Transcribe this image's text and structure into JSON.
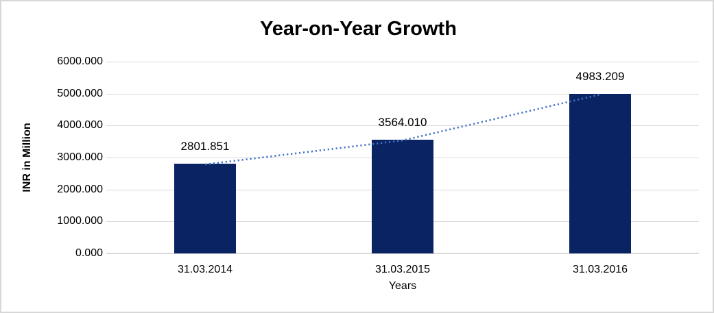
{
  "chart_data": {
    "type": "bar",
    "title": "Year-on-Year Growth",
    "categories": [
      "31.03.2014",
      "31.03.2015",
      "31.03.2016"
    ],
    "series": [
      {
        "name": "values-bars",
        "type": "bar",
        "values": [
          2801.851,
          3564.01,
          4983.209
        ]
      },
      {
        "name": "trend-line",
        "type": "dotted-line",
        "values": [
          2801.851,
          3564.01,
          4983.209
        ]
      }
    ],
    "value_labels": [
      "2801.851",
      "3564.010",
      "4983.209"
    ],
    "xlabel": "Years",
    "ylabel": "INR in Million",
    "ylim": [
      0,
      6000
    ],
    "ytick_step": 1000,
    "ytick_labels": [
      "0.000",
      "1000.000",
      "2000.000",
      "3000.000",
      "4000.000",
      "5000.000",
      "6000.000"
    ],
    "grid": true,
    "legend_position": "none",
    "colors": {
      "bar": "#0A2463",
      "trend": "#4472C4",
      "gridline": "#D9D9D9",
      "frame_border": "#D7D7D7",
      "text": "#000000"
    }
  }
}
